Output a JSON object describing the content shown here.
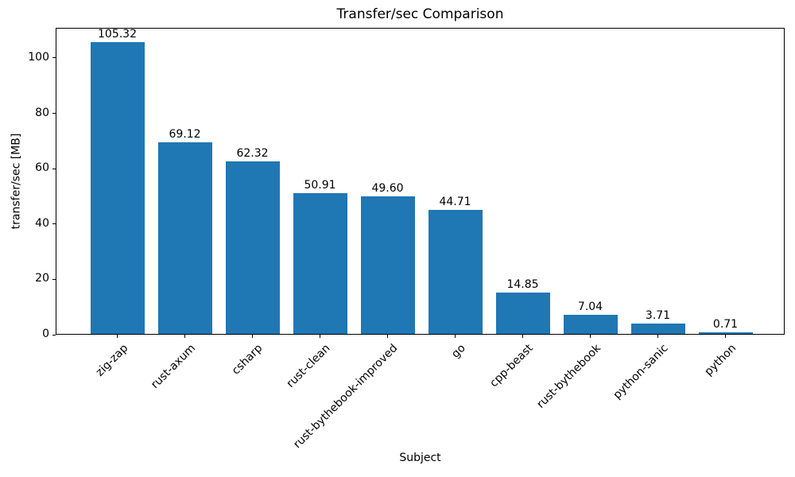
{
  "chart_data": {
    "type": "bar",
    "title": "Transfer/sec Comparison",
    "xlabel": "Subject",
    "ylabel": "transfer/sec [MB]",
    "categories": [
      "zig-zap",
      "rust-axum",
      "csharp",
      "rust-clean",
      "rust-bythebook-improved",
      "go",
      "cpp-beast",
      "rust-bythebook",
      "python-sanic",
      "python"
    ],
    "values": [
      105.32,
      69.12,
      62.32,
      50.91,
      49.6,
      44.71,
      14.85,
      7.04,
      3.71,
      0.71
    ],
    "value_labels": [
      "105.32",
      "69.12",
      "62.32",
      "50.91",
      "49.60",
      "44.71",
      "14.85",
      "7.04",
      "3.71",
      "0.71"
    ],
    "yticks": [
      0,
      20,
      40,
      60,
      80,
      100
    ],
    "ytick_labels": [
      "0",
      "20",
      "40",
      "60",
      "80",
      "100"
    ],
    "ylim": [
      0,
      110.9
    ],
    "xtick_rotation_deg": 45,
    "bar_color": "#1f77b4",
    "axes_color": "#000000",
    "background_color": "#ffffff",
    "grid": false,
    "legend": null
  }
}
